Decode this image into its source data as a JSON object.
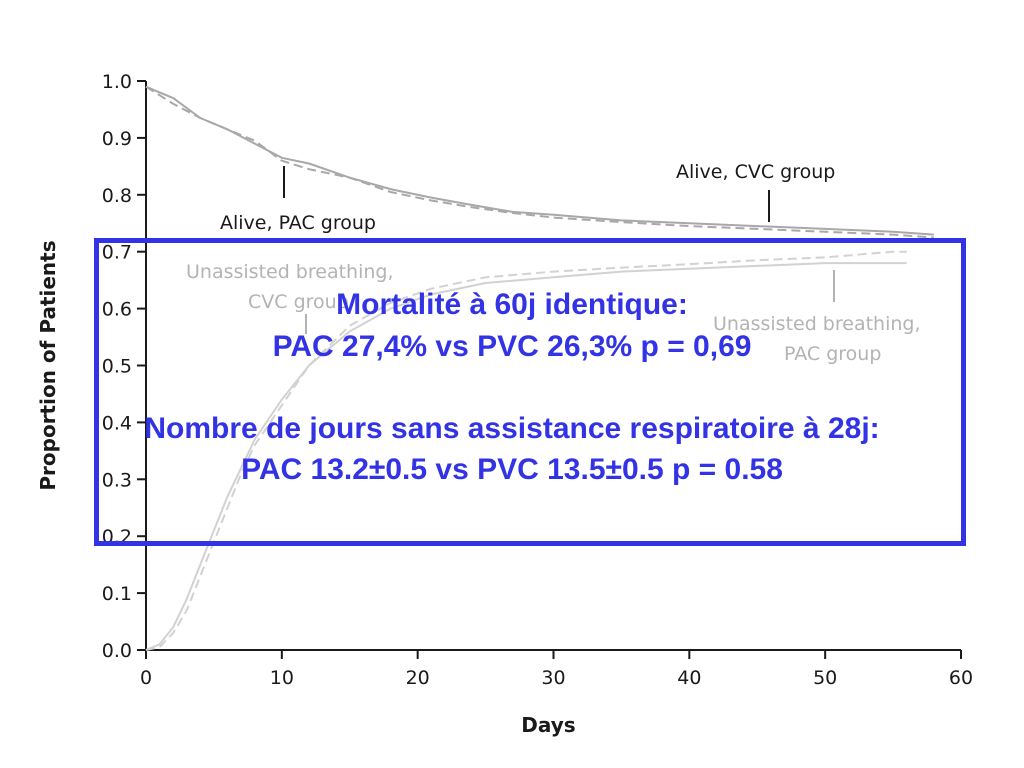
{
  "chart_data": {
    "type": "line",
    "xlabel": "Days",
    "ylabel": "Proportion of Patients",
    "xlim": [
      0,
      60
    ],
    "ylim": [
      0.0,
      1.0
    ],
    "x_ticks": [
      "0",
      "10",
      "20",
      "30",
      "40",
      "50",
      "60"
    ],
    "y_ticks": [
      "0.0",
      "0.1",
      "0.2",
      "0.3",
      "0.4",
      "0.5",
      "0.6",
      "0.7",
      "0.8",
      "0.9",
      "1.0"
    ],
    "grid": false,
    "colors": {
      "alive": "#a8a8a8",
      "unassisted": "#d2d2d2",
      "overlay": "#3333e6"
    },
    "series": [
      {
        "key": "alive_pac",
        "style": "solid",
        "x": [
          0,
          1,
          2,
          4,
          6,
          8,
          10,
          12,
          15,
          18,
          21,
          24,
          27,
          30,
          35,
          40,
          45,
          50,
          55,
          58
        ],
        "y": [
          0.99,
          0.98,
          0.97,
          0.935,
          0.915,
          0.89,
          0.865,
          0.855,
          0.83,
          0.81,
          0.795,
          0.782,
          0.77,
          0.765,
          0.755,
          0.75,
          0.745,
          0.74,
          0.735,
          0.73
        ]
      },
      {
        "key": "alive_cvc",
        "style": "dashed",
        "x": [
          0,
          1,
          2,
          4,
          6,
          8,
          10,
          12,
          15,
          18,
          21,
          24,
          27,
          30,
          35,
          40,
          45,
          50,
          55,
          58
        ],
        "y": [
          0.99,
          0.975,
          0.96,
          0.935,
          0.915,
          0.895,
          0.86,
          0.845,
          0.83,
          0.805,
          0.79,
          0.778,
          0.768,
          0.76,
          0.752,
          0.745,
          0.74,
          0.735,
          0.73,
          0.725
        ]
      },
      {
        "key": "unassisted_cvc",
        "style": "solid",
        "x": [
          0,
          1,
          2,
          3,
          4,
          5,
          6,
          7,
          8,
          10,
          12,
          15,
          18,
          21,
          25,
          30,
          35,
          40,
          45,
          50,
          55,
          56
        ],
        "y": [
          0.0,
          0.01,
          0.04,
          0.09,
          0.15,
          0.21,
          0.27,
          0.32,
          0.37,
          0.44,
          0.5,
          0.56,
          0.6,
          0.625,
          0.645,
          0.655,
          0.665,
          0.67,
          0.675,
          0.68,
          0.68,
          0.68
        ]
      },
      {
        "key": "unassisted_pac",
        "style": "dashed",
        "x": [
          0,
          1,
          2,
          3,
          4,
          5,
          6,
          7,
          8,
          10,
          12,
          15,
          18,
          21,
          25,
          30,
          35,
          40,
          45,
          50,
          55,
          56
        ],
        "y": [
          0.0,
          0.005,
          0.03,
          0.07,
          0.13,
          0.19,
          0.25,
          0.31,
          0.36,
          0.43,
          0.5,
          0.57,
          0.61,
          0.635,
          0.655,
          0.665,
          0.672,
          0.678,
          0.685,
          0.69,
          0.7,
          0.7
        ]
      }
    ],
    "annotations": [
      {
        "key": "ann_alive_pac",
        "lines": [
          "Alive, PAC group"
        ],
        "tone": "dark",
        "anchor": [
          10.2,
          0.845
        ]
      },
      {
        "key": "ann_alive_cvc",
        "lines": [
          "Alive, CVC group"
        ],
        "tone": "dark",
        "anchor": [
          45.8,
          0.755
        ]
      },
      {
        "key": "ann_unassisted_cvc",
        "lines": [
          "Unassisted breathing,",
          "CVC group"
        ],
        "tone": "light",
        "anchor": [
          11.5,
          0.57
        ]
      },
      {
        "key": "ann_unassisted_pac",
        "lines": [
          "Unassisted breathing,",
          "PAC group"
        ],
        "tone": "light",
        "anchor": [
          50.7,
          0.68
        ]
      }
    ]
  },
  "overlay": {
    "line1": "Mortalité à 60j identique:",
    "line2": "PAC 27,4% vs PVC 26,3% p = 0,69",
    "line3": "Nombre de jours sans assistance respiratoire à 28j:",
    "line4": "PAC 13.2±0.5 vs PVC 13.5±0.5 p = 0.58"
  }
}
